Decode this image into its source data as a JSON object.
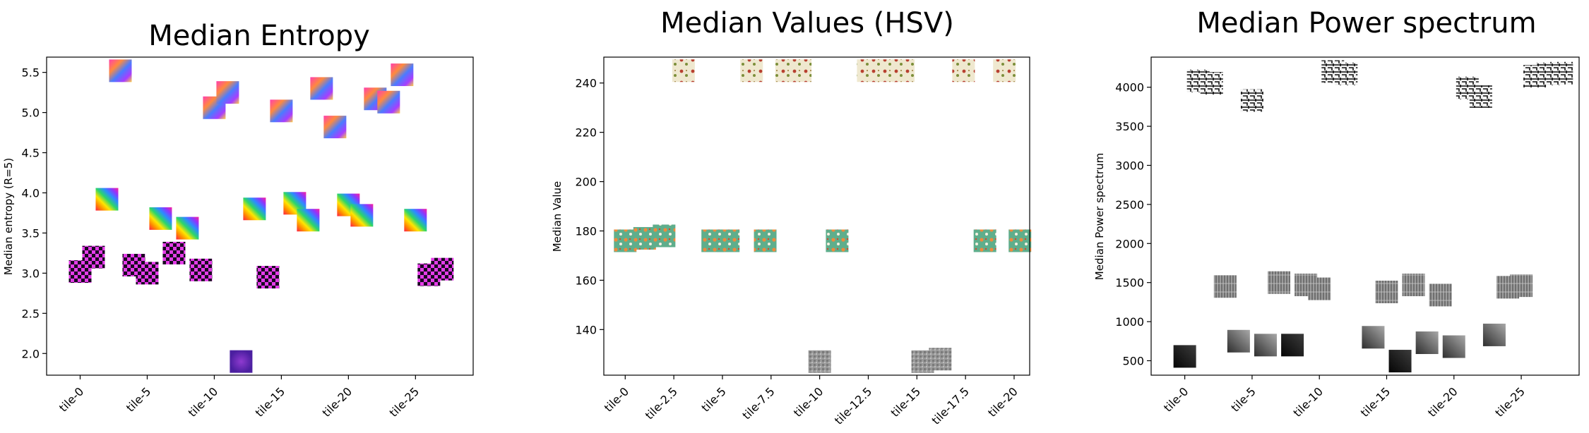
{
  "chart_data": [
    {
      "type": "scatter",
      "title": "Median Entropy",
      "xlabel": "",
      "ylabel": "Median entropy (R=5)",
      "xlim": [
        -2.5,
        29.3
      ],
      "ylim": [
        1.73,
        5.69
      ],
      "xticks": [
        0,
        5,
        10,
        15,
        20,
        25
      ],
      "xticklabels": [
        "tile-0",
        "tile-5",
        "tile-10",
        "tile-15",
        "tile-20",
        "tile-25"
      ],
      "yticks": [
        2.0,
        2.5,
        3.0,
        3.5,
        4.0,
        4.5,
        5.0,
        5.5
      ],
      "yticklabels": [
        "2.0",
        "2.5",
        "3.0",
        "3.5",
        "4.0",
        "4.5",
        "5.0",
        "5.5"
      ],
      "marker": "image thumbnail",
      "points": [
        {
          "x": 0,
          "y": 3.02,
          "tile": "magenta-check"
        },
        {
          "x": 1,
          "y": 3.2,
          "tile": "magenta-check"
        },
        {
          "x": 2,
          "y": 3.92,
          "tile": "rainbow-stripes"
        },
        {
          "x": 3,
          "y": 5.52,
          "tile": "psychedelic-waves"
        },
        {
          "x": 4,
          "y": 3.1,
          "tile": "magenta-check"
        },
        {
          "x": 5,
          "y": 3.0,
          "tile": "magenta-check"
        },
        {
          "x": 6,
          "y": 3.68,
          "tile": "rainbow-stripes"
        },
        {
          "x": 7,
          "y": 3.25,
          "tile": "magenta-check"
        },
        {
          "x": 8,
          "y": 3.56,
          "tile": "rainbow-stripes"
        },
        {
          "x": 9,
          "y": 3.04,
          "tile": "magenta-check"
        },
        {
          "x": 10,
          "y": 5.06,
          "tile": "psychedelic-waves"
        },
        {
          "x": 11,
          "y": 5.25,
          "tile": "psychedelic-waves"
        },
        {
          "x": 12,
          "y": 1.9,
          "tile": "purple-blur"
        },
        {
          "x": 13,
          "y": 3.8,
          "tile": "rainbow-stripes"
        },
        {
          "x": 14,
          "y": 2.95,
          "tile": "magenta-check"
        },
        {
          "x": 15,
          "y": 5.02,
          "tile": "psychedelic-waves"
        },
        {
          "x": 16,
          "y": 3.87,
          "tile": "rainbow-stripes"
        },
        {
          "x": 17,
          "y": 3.66,
          "tile": "rainbow-stripes"
        },
        {
          "x": 18,
          "y": 5.3,
          "tile": "psychedelic-waves"
        },
        {
          "x": 19,
          "y": 4.82,
          "tile": "psychedelic-waves"
        },
        {
          "x": 20,
          "y": 3.85,
          "tile": "rainbow-stripes"
        },
        {
          "x": 21,
          "y": 3.72,
          "tile": "rainbow-stripes"
        },
        {
          "x": 22,
          "y": 5.17,
          "tile": "psychedelic-waves"
        },
        {
          "x": 23,
          "y": 5.13,
          "tile": "psychedelic-waves"
        },
        {
          "x": 24,
          "y": 5.47,
          "tile": "psychedelic-waves"
        },
        {
          "x": 25,
          "y": 3.66,
          "tile": "rainbow-stripes"
        },
        {
          "x": 26,
          "y": 2.98,
          "tile": "magenta-check"
        },
        {
          "x": 27,
          "y": 3.05,
          "tile": "magenta-check"
        }
      ]
    },
    {
      "type": "scatter",
      "title": "Median Values (HSV)",
      "xlabel": "",
      "ylabel": "Median Value",
      "xlim": [
        -1.1,
        20.8
      ],
      "ylim": [
        121.5,
        250.5
      ],
      "xticks": [
        0,
        2.5,
        5,
        7.5,
        10,
        12.5,
        15,
        17.5,
        20
      ],
      "xticklabels": [
        "tile-0",
        "tile-2.5",
        "tile-5",
        "tile-7.5",
        "tile-10",
        "tile-12.5",
        "tile-15",
        "tile-17.5",
        "tile-20"
      ],
      "yticks": [
        140,
        160,
        180,
        200,
        220,
        240
      ],
      "yticklabels": [
        "140",
        "160",
        "180",
        "200",
        "220",
        "240"
      ],
      "marker": "image thumbnail",
      "points": [
        {
          "x": 0,
          "y": 176,
          "tile": "green-floral"
        },
        {
          "x": 1,
          "y": 177,
          "tile": "green-floral"
        },
        {
          "x": 2,
          "y": 178,
          "tile": "green-floral"
        },
        {
          "x": 3,
          "y": 245,
          "tile": "cream-floral"
        },
        {
          "x": 4.5,
          "y": 176,
          "tile": "green-floral"
        },
        {
          "x": 5.3,
          "y": 176,
          "tile": "green-floral"
        },
        {
          "x": 6.5,
          "y": 245,
          "tile": "cream-floral"
        },
        {
          "x": 7.2,
          "y": 176,
          "tile": "green-floral"
        },
        {
          "x": 8.3,
          "y": 245,
          "tile": "cream-floral"
        },
        {
          "x": 9,
          "y": 245,
          "tile": "cream-floral"
        },
        {
          "x": 10,
          "y": 127,
          "tile": "grey-texture"
        },
        {
          "x": 10.9,
          "y": 176,
          "tile": "green-floral"
        },
        {
          "x": 12.5,
          "y": 245,
          "tile": "cream-floral"
        },
        {
          "x": 13.4,
          "y": 245,
          "tile": "cream-floral"
        },
        {
          "x": 14.3,
          "y": 245,
          "tile": "cream-floral"
        },
        {
          "x": 15.3,
          "y": 127,
          "tile": "grey-texture"
        },
        {
          "x": 16.2,
          "y": 128,
          "tile": "grey-texture"
        },
        {
          "x": 17.4,
          "y": 245,
          "tile": "cream-floral"
        },
        {
          "x": 18.5,
          "y": 176,
          "tile": "green-floral"
        },
        {
          "x": 19.5,
          "y": 245,
          "tile": "cream-floral"
        },
        {
          "x": 20.3,
          "y": 176,
          "tile": "green-floral"
        }
      ]
    },
    {
      "type": "scatter",
      "title": "Median Power spectrum",
      "xlabel": "",
      "ylabel": "Median Power spectrum",
      "xlim": [
        -2.5,
        29.3
      ],
      "ylim": [
        315,
        4385
      ],
      "xticks": [
        0,
        5,
        10,
        15,
        20,
        25
      ],
      "xticklabels": [
        "tile-0",
        "tile-5",
        "tile-10",
        "tile-15",
        "tile-20",
        "tile-25"
      ],
      "yticks": [
        500,
        1000,
        1500,
        2000,
        2500,
        3000,
        3500,
        4000
      ],
      "yticklabels": [
        "500",
        "1000",
        "1500",
        "2000",
        "2500",
        "3000",
        "3500",
        "4000"
      ],
      "marker": "image thumbnail",
      "points": [
        {
          "x": 0,
          "y": 555,
          "tile": "dark-gradient"
        },
        {
          "x": 1,
          "y": 4080,
          "tile": "bw-maze"
        },
        {
          "x": 2,
          "y": 4050,
          "tile": "bw-maze"
        },
        {
          "x": 3,
          "y": 1450,
          "tile": "grey-bark"
        },
        {
          "x": 4,
          "y": 750,
          "tile": "grey-gradient"
        },
        {
          "x": 5,
          "y": 3830,
          "tile": "bw-maze"
        },
        {
          "x": 6,
          "y": 700,
          "tile": "grey-gradient"
        },
        {
          "x": 7,
          "y": 1500,
          "tile": "grey-bark"
        },
        {
          "x": 8,
          "y": 700,
          "tile": "dark-gradient"
        },
        {
          "x": 9,
          "y": 1470,
          "tile": "grey-bark"
        },
        {
          "x": 10,
          "y": 1420,
          "tile": "grey-bark"
        },
        {
          "x": 11,
          "y": 4200,
          "tile": "bw-maze"
        },
        {
          "x": 12,
          "y": 4170,
          "tile": "bw-maze"
        },
        {
          "x": 14,
          "y": 800,
          "tile": "grey-gradient"
        },
        {
          "x": 15,
          "y": 1380,
          "tile": "grey-bark"
        },
        {
          "x": 16,
          "y": 495,
          "tile": "dark-gradient"
        },
        {
          "x": 17,
          "y": 1470,
          "tile": "grey-bark"
        },
        {
          "x": 18,
          "y": 730,
          "tile": "grey-gradient"
        },
        {
          "x": 19,
          "y": 1340,
          "tile": "grey-bark"
        },
        {
          "x": 20,
          "y": 680,
          "tile": "grey-gradient"
        },
        {
          "x": 21,
          "y": 3990,
          "tile": "bw-maze"
        },
        {
          "x": 22,
          "y": 3880,
          "tile": "bw-maze"
        },
        {
          "x": 23,
          "y": 830,
          "tile": "grey-gradient"
        },
        {
          "x": 24,
          "y": 1440,
          "tile": "grey-bark"
        },
        {
          "x": 25,
          "y": 1460,
          "tile": "grey-bark"
        },
        {
          "x": 26,
          "y": 4140,
          "tile": "bw-maze"
        },
        {
          "x": 27,
          "y": 4170,
          "tile": "bw-maze"
        },
        {
          "x": 28,
          "y": 4180,
          "tile": "bw-maze"
        }
      ]
    }
  ]
}
